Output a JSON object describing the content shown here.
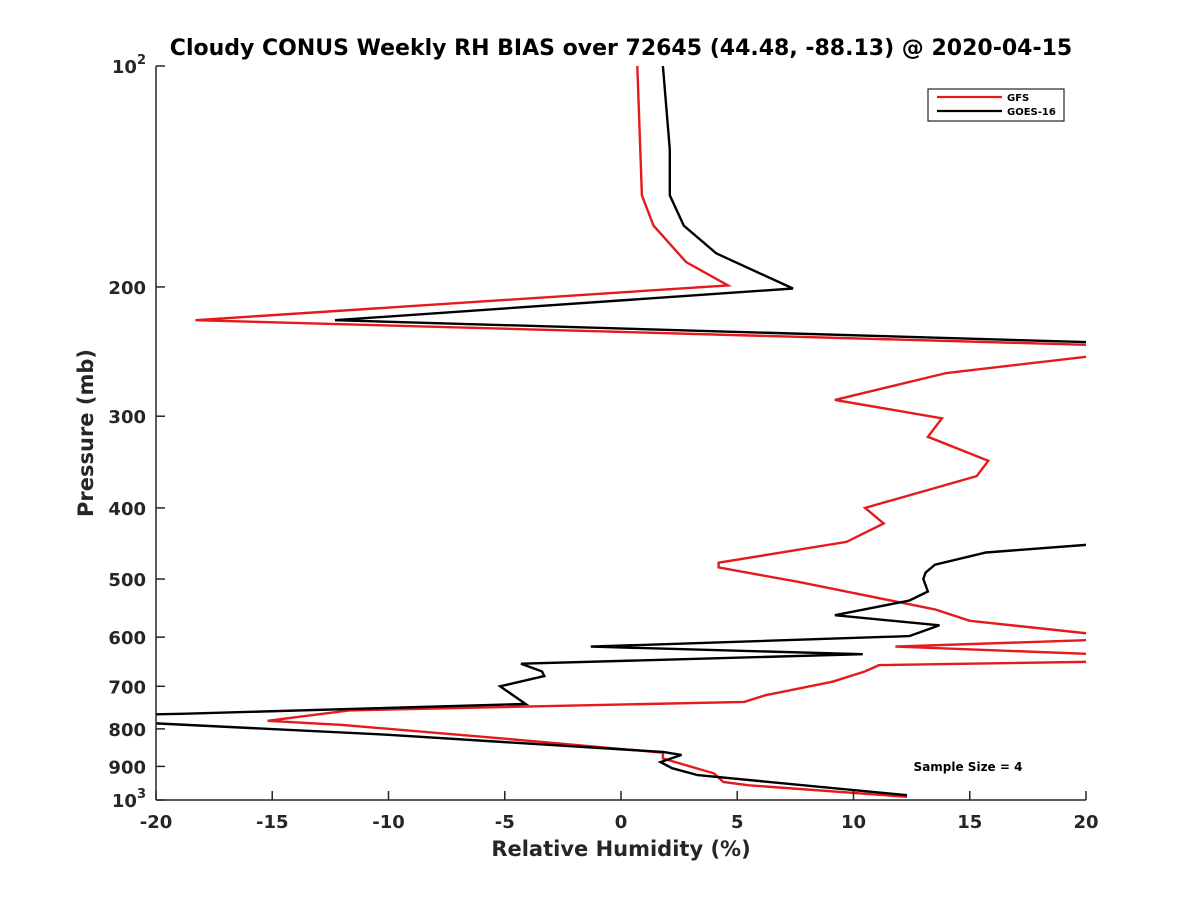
{
  "chart_data": {
    "type": "line",
    "title": "Cloudy CONUS Weekly RH BIAS over 72645 (44.48, -88.13) @ 2020-04-15",
    "xlabel": "Relative Humidity (%)",
    "ylabel": "Pressure (mb)",
    "xlim": [
      -20,
      20
    ],
    "ylim": [
      100,
      1000
    ],
    "y_scale": "log",
    "y_reversed": true,
    "x_ticks": [
      "-20",
      "-15",
      "-10",
      "-5",
      "0",
      "5",
      "10",
      "15",
      "20"
    ],
    "y_ticks": [
      {
        "value": 100,
        "base": "10",
        "exp": "2"
      },
      {
        "value": 200,
        "label": "200"
      },
      {
        "value": 300,
        "label": "300"
      },
      {
        "value": 400,
        "label": "400"
      },
      {
        "value": 500,
        "label": "500"
      },
      {
        "value": 600,
        "label": "600"
      },
      {
        "value": 700,
        "label": "700"
      },
      {
        "value": 800,
        "label": "800"
      },
      {
        "value": 900,
        "label": "900"
      },
      {
        "value": 1000,
        "base": "10",
        "exp": "3"
      }
    ],
    "legend_position": "top-right",
    "annotation": "Sample Size = 4",
    "series": [
      {
        "name": "GFS",
        "color": "#e41a1c",
        "points": [
          [
            0.7,
            100
          ],
          [
            0.9,
            150
          ],
          [
            1.4,
            165
          ],
          [
            2.8,
            185
          ],
          [
            4.6,
            199
          ],
          [
            -18.3,
            222
          ],
          [
            20.5,
            240
          ],
          [
            20.5,
            248
          ],
          [
            14,
            262
          ],
          [
            9.2,
            285
          ],
          [
            13.8,
            302
          ],
          [
            13.2,
            320
          ],
          [
            15.8,
            345
          ],
          [
            15.3,
            362
          ],
          [
            10.5,
            400
          ],
          [
            11.3,
            420
          ],
          [
            9.7,
            445
          ],
          [
            4.2,
            475
          ],
          [
            4.2,
            482
          ],
          [
            7.7,
            505
          ],
          [
            13.5,
            550
          ],
          [
            15,
            570
          ],
          [
            20.5,
            595
          ],
          [
            20.5,
            605
          ],
          [
            11.8,
            618
          ],
          [
            20.5,
            633
          ],
          [
            20.5,
            648
          ],
          [
            11.1,
            655
          ],
          [
            10.5,
            668
          ],
          [
            9.1,
            690
          ],
          [
            6.2,
            720
          ],
          [
            5.3,
            735
          ],
          [
            -11.7,
            755
          ],
          [
            -15.2,
            780
          ],
          [
            -12,
            790
          ],
          [
            -5,
            825
          ],
          [
            1.8,
            862
          ],
          [
            1.8,
            878
          ],
          [
            4,
            920
          ],
          [
            4.4,
            945
          ],
          [
            5.5,
            955
          ],
          [
            12.3,
            990
          ]
        ]
      },
      {
        "name": "GOES-16",
        "color": "#000000",
        "points": [
          [
            1.8,
            100
          ],
          [
            2.1,
            130
          ],
          [
            2.1,
            150
          ],
          [
            2.7,
            165
          ],
          [
            4.1,
            180
          ],
          [
            7.4,
            201
          ],
          [
            -12.3,
            222
          ],
          [
            20.5,
            238
          ],
          [
            20.5,
            448
          ],
          [
            15.7,
            460
          ],
          [
            13.5,
            478
          ],
          [
            13.1,
            490
          ],
          [
            13,
            500
          ],
          [
            13.2,
            520
          ],
          [
            12.4,
            535
          ],
          [
            9.2,
            560
          ],
          [
            13.7,
            578
          ],
          [
            12.4,
            598
          ],
          [
            -1.3,
            618
          ],
          [
            10.4,
            633
          ],
          [
            -4.3,
            652
          ],
          [
            -3.4,
            668
          ],
          [
            -3.3,
            678
          ],
          [
            -5.2,
            700
          ],
          [
            -4.1,
            740
          ],
          [
            -18.9,
            763
          ],
          [
            -20.5,
            765
          ],
          [
            -20.5,
            785
          ],
          [
            -10,
            815
          ],
          [
            -3.9,
            838
          ],
          [
            1.8,
            860
          ],
          [
            2.6,
            868
          ],
          [
            1.7,
            888
          ],
          [
            2.2,
            905
          ],
          [
            3.3,
            925
          ],
          [
            12.3,
            985
          ]
        ]
      }
    ]
  }
}
